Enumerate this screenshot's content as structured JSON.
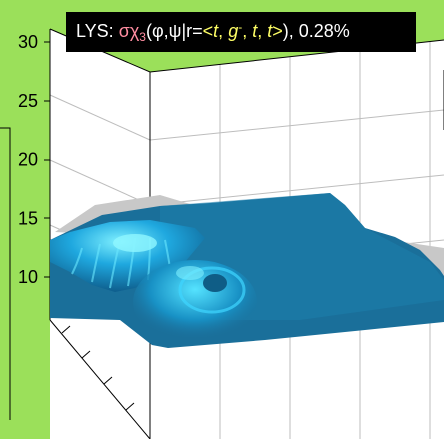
{
  "colors": {
    "background": "#9be05a",
    "axes_face": "#ffffff",
    "surface_main": "#1a6f9a",
    "surface_highlight": "#3fd6ff",
    "shadow": "#c4c4c4",
    "title_bg": "#000000",
    "title_fg": "#ffffff",
    "title_pink": "#ff8da1",
    "title_yellow": "#ffff66"
  },
  "title": {
    "prefix": "LYS: ",
    "func": "σχ",
    "sub": "3",
    "args_open": "(φ,ψ|r=",
    "lt": "<",
    "r1": "t",
    "sep1": ", ",
    "r2": "g",
    "r2_sup": "-",
    "sep2": ", ",
    "r3": "t",
    "sep3": ", ",
    "r4": "t",
    "gt": ">",
    "args_close": "), 0.28%"
  },
  "chart_data": {
    "type": "surface",
    "title": "LYS: σχ3(φ,ψ|r=<t, g-, t, t>), 0.28%",
    "zaxis": {
      "ticks": [
        10,
        15,
        20,
        25,
        30
      ],
      "tick_labels": [
        "10",
        "15",
        "20",
        "25",
        "30"
      ]
    },
    "grid": true
  }
}
